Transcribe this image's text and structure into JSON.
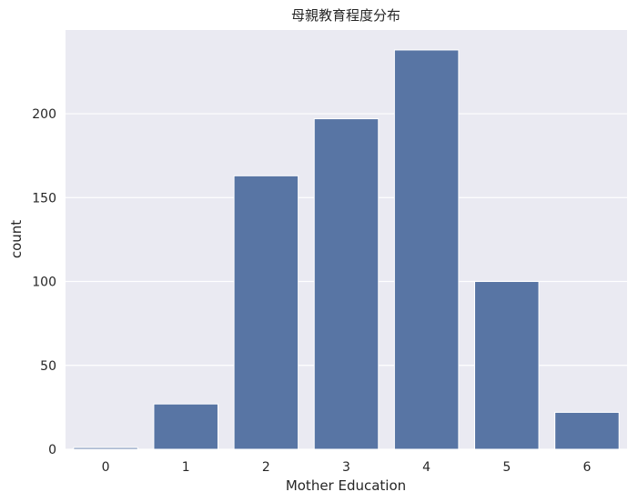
{
  "chart_data": {
    "type": "bar",
    "title": "母親教育程度分布",
    "xlabel": "Mother Education",
    "ylabel": "count",
    "categories": [
      "0",
      "1",
      "2",
      "3",
      "4",
      "5",
      "6"
    ],
    "values": [
      1,
      27,
      163,
      197,
      238,
      100,
      22
    ],
    "ylim": [
      0,
      249.9
    ],
    "yticks": [
      0,
      50,
      100,
      150,
      200
    ],
    "grid": true,
    "legend": "none",
    "colors": {
      "bar": "#5875a4",
      "background": "#eaeaf2",
      "grid": "#ffffff"
    }
  }
}
